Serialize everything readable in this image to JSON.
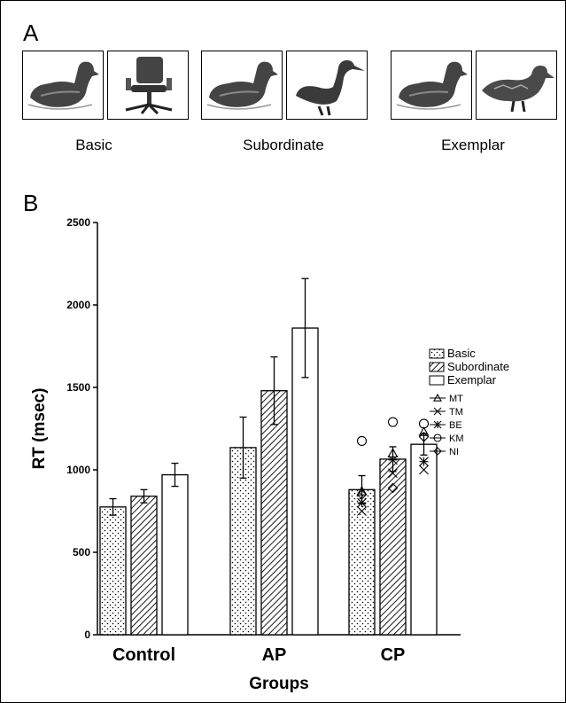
{
  "panel_a": {
    "letter": "A",
    "conditions": [
      {
        "label": "Basic",
        "left_icon": "duck-icon",
        "right_icon": "office-chair-icon"
      },
      {
        "label": "Subordinate",
        "left_icon": "duck-icon",
        "right_icon": "swan-icon"
      },
      {
        "label": "Exemplar",
        "left_icon": "duck-icon",
        "right_icon": "mallard-duck-icon"
      }
    ]
  },
  "panel_b": {
    "letter": "B"
  },
  "chart_data": {
    "type": "bar",
    "title": "",
    "xlabel": "Groups",
    "ylabel": "RT (msec)",
    "ylim": [
      0,
      2500
    ],
    "yticks": [
      0,
      500,
      1000,
      1500,
      2000,
      2500
    ],
    "categories": [
      "Control",
      "AP",
      "CP"
    ],
    "series": [
      {
        "name": "Basic",
        "pattern": "dots",
        "values": [
          775,
          1135,
          880
        ],
        "errors": [
          50,
          185,
          85
        ]
      },
      {
        "name": "Subordinate",
        "pattern": "hatch",
        "values": [
          840,
          1480,
          1065
        ],
        "errors": [
          40,
          205,
          75
        ]
      },
      {
        "name": "Exemplar",
        "pattern": "none",
        "values": [
          970,
          1860,
          1155
        ],
        "errors": [
          70,
          300,
          65
        ]
      }
    ],
    "individuals": [
      {
        "name": "MT",
        "marker": "triangle",
        "values": [
          870,
          1100,
          1230
        ]
      },
      {
        "name": "TM",
        "marker": "x",
        "values": [
          750,
          980,
          1000
        ]
      },
      {
        "name": "BE",
        "marker": "asterisk",
        "values": [
          800,
          1060,
          1050
        ]
      },
      {
        "name": "KM",
        "marker": "circle",
        "values": [
          1175,
          1290,
          1280
        ]
      },
      {
        "name": "NI",
        "marker": "diamond",
        "values": [
          850,
          890,
          1200
        ]
      }
    ],
    "legend_position": "right"
  }
}
